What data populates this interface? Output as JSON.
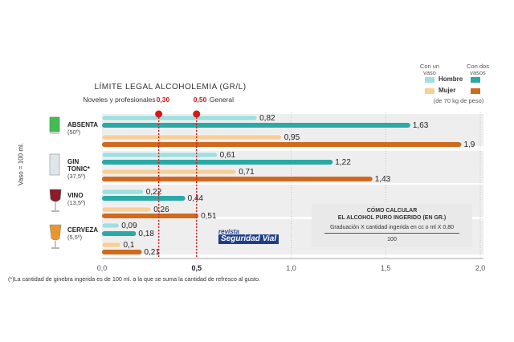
{
  "chart_data": {
    "type": "bar",
    "orientation": "horizontal",
    "title": "LÍMITE LEGAL ALCOHOLEMIA (GR/L)",
    "thresholds": [
      {
        "label_text": "Noveles y profesionales",
        "label_value": "0,30",
        "value": 0.3
      },
      {
        "label_text": "General",
        "label_value": "0,50",
        "value": 0.5
      }
    ],
    "xlim": [
      0,
      2
    ],
    "ticks": [
      {
        "value": 0,
        "label": "0,0"
      },
      {
        "value": 0.5,
        "label": "0,5"
      },
      {
        "value": 1,
        "label": "1,0"
      },
      {
        "value": 1.5,
        "label": "1,5"
      },
      {
        "value": 2,
        "label": "2,0"
      }
    ],
    "ylabel": "Vaso = 100 ml.",
    "series": [
      {
        "name": "Hombre, con un vaso",
        "color": "#9fdfe0"
      },
      {
        "name": "Hombre, con dos vasos",
        "color": "#2aa9a6"
      },
      {
        "name": "Mujer, con un vaso",
        "color": "#f7cf97"
      },
      {
        "name": "Mujer, con dos vasos",
        "color": "#cf6a1e"
      }
    ],
    "drinks": [
      {
        "name": "ABSENTA",
        "degree": "(50º)",
        "icon": "absinthe-glass-icon",
        "color": "#3fbf4f",
        "values": [
          0.82,
          1.63,
          0.95,
          1.9
        ],
        "labels": [
          "0,82",
          "1,63",
          "0,95",
          "1,9"
        ]
      },
      {
        "name": "GIN TONIC*",
        "degree": "(37,5º)",
        "icon": "gin-tonic-glass-icon",
        "color": "#dfe7ea",
        "values": [
          0.61,
          1.22,
          0.71,
          1.43
        ],
        "labels": [
          "0,61",
          "1,22",
          "0,71",
          "1,43"
        ]
      },
      {
        "name": "VINO",
        "degree": "(13,5º)",
        "icon": "wine-glass-icon",
        "color": "#8c1c2c",
        "values": [
          0.22,
          0.44,
          0.26,
          0.51
        ],
        "labels": [
          "0,22",
          "0,44",
          "0,26",
          "0,51"
        ]
      },
      {
        "name": "CERVEZA",
        "degree": "(5,5º)",
        "icon": "beer-glass-icon",
        "color": "#e8962e",
        "values": [
          0.09,
          0.18,
          0.1,
          0.21
        ],
        "labels": [
          "0,09",
          "0,18",
          "0,1",
          "0,21"
        ]
      }
    ]
  },
  "legend": {
    "col1": "Con un vaso",
    "col2": "Con dos vasos",
    "hombre": "Hombre",
    "mujer": "Mujer",
    "note": "(de 70 kg de peso)"
  },
  "formula": {
    "title1": "CÓMO CALCULAR",
    "title2": "EL ALCOHOL PURO INGERIDO (EN GR.)",
    "numerator": "Graduación X cantidad ingerida en cc o ml X 0,80",
    "denominator": "100",
    "equals": "="
  },
  "logo": {
    "top": "revista",
    "main": "Seguridad Vial"
  },
  "footnote": "(*)La cantidad de ginebra ingerida es de 100 ml. a la que se suma la cantidad de refresco al gusto."
}
